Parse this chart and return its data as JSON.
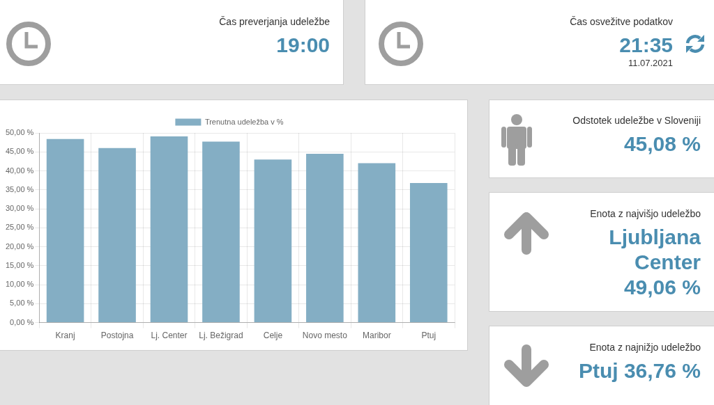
{
  "chart_data": [
    {
      "type": "other",
      "title": "Čas preverjanja udeležbe",
      "annotations": [
        "19:00"
      ]
    },
    {
      "type": "other",
      "title": "Čas osvežitve podatkov",
      "annotations": [
        "21:35",
        "11.07.2021"
      ]
    },
    {
      "type": "bar",
      "categories": [
        "Kranj",
        "Postojna",
        "Lj. Center",
        "Lj. Bežigrad",
        "Celje",
        "Novo mesto",
        "Maribor",
        "Ptuj"
      ],
      "series": [
        {
          "name": "Trenutna udeležba v %",
          "color": "#84aec4",
          "values": [
            48.4,
            46.0,
            49.1,
            47.7,
            43.0,
            44.5,
            42.0,
            36.8
          ]
        }
      ],
      "ylim": [
        0,
        50
      ],
      "yticks": [
        {
          "value": 0,
          "label": "0,00 %"
        },
        {
          "value": 5,
          "label": "5,00 %"
        },
        {
          "value": 10,
          "label": "10,00 %"
        },
        {
          "value": 15,
          "label": "15,00 %"
        },
        {
          "value": 20,
          "label": "20,00 %"
        },
        {
          "value": 25,
          "label": "25,00 %"
        },
        {
          "value": 30,
          "label": "30,00 %"
        },
        {
          "value": 35,
          "label": "35,00 %"
        },
        {
          "value": 40,
          "label": "40,00 %"
        },
        {
          "value": 45,
          "label": "45,00 %"
        },
        {
          "value": 50,
          "label": "50,00 %"
        }
      ],
      "grid": true,
      "legend": "top"
    },
    {
      "type": "other",
      "title": "Odstotek udeležbe v Sloveniji",
      "annotations": [
        "45,08 %"
      ]
    },
    {
      "type": "other",
      "title": "Enota z najvišjo udeležbo",
      "annotations": [
        "Ljubljana Center",
        "49,06 %"
      ]
    },
    {
      "type": "other",
      "title": "Enota z najnižjo udeležbo",
      "annotations": [
        "Ptuj 36,76 %"
      ]
    }
  ]
}
